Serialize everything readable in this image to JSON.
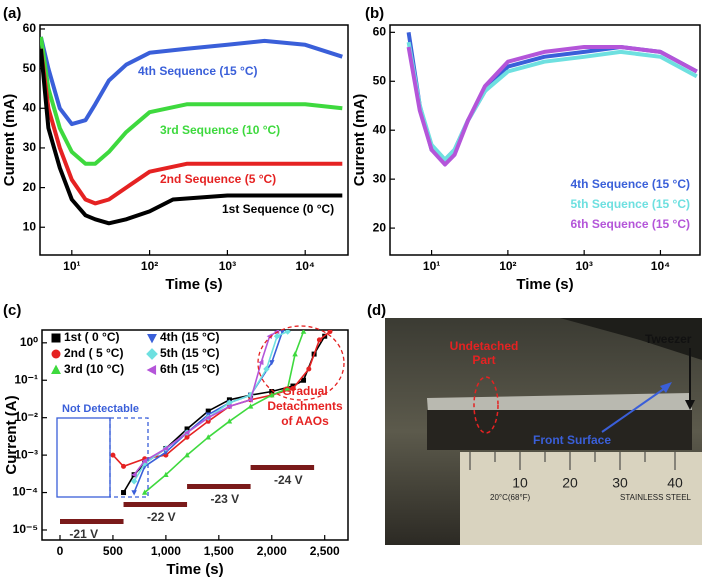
{
  "chart_data": [
    {
      "type": "line",
      "panel_label": "(a)",
      "x_label": "Time (s)",
      "y_label": "Current (mA)",
      "xlog": true,
      "xlim": [
        3.9,
        35500
      ],
      "xticks": [
        {
          "value": 10,
          "label": "10¹"
        },
        {
          "value": 100,
          "label": "10²"
        },
        {
          "value": 1000,
          "label": "10³"
        },
        {
          "value": 10000,
          "label": "10⁴"
        }
      ],
      "ylim": [
        3,
        61
      ],
      "yticks": [
        10,
        20,
        30,
        40,
        50,
        60
      ],
      "legend": "on-curve",
      "series": [
        {
          "name": "4th Sequence (15 °C)",
          "color": "#3a5fd9",
          "x": [
            4,
            5,
            7,
            10,
            15,
            20,
            30,
            50,
            100,
            300,
            1000,
            3000,
            10000,
            30000
          ],
          "values": [
            58,
            50,
            40,
            36,
            37,
            41,
            47,
            51,
            54,
            55,
            56,
            57,
            56,
            53
          ]
        },
        {
          "name": "3rd Sequence (10 °C)",
          "color": "#3ed93e",
          "x": [
            4,
            5,
            7,
            10,
            15,
            20,
            30,
            50,
            100,
            300,
            1000,
            10000,
            30000
          ],
          "values": [
            58,
            45,
            35,
            29,
            26,
            26,
            29,
            34,
            39,
            41,
            41,
            41,
            40
          ]
        },
        {
          "name": "2nd Sequence (5 °C)",
          "color": "#e52222",
          "x": [
            4,
            5,
            7,
            10,
            15,
            20,
            30,
            50,
            100,
            300,
            1000,
            10000,
            30000
          ],
          "values": [
            55,
            40,
            30,
            22,
            17,
            16,
            17,
            20,
            24,
            26,
            26,
            26,
            26
          ]
        },
        {
          "name": "1st Sequence (0 °C)",
          "color": "#000000",
          "x": [
            4,
            5,
            7,
            10,
            15,
            20,
            30,
            50,
            100,
            200,
            1000,
            10000,
            30000
          ],
          "values": [
            55,
            35,
            25,
            17,
            13,
            12,
            11,
            12,
            14,
            17,
            18,
            18,
            18
          ]
        }
      ]
    },
    {
      "type": "line",
      "panel_label": "(b)",
      "x_label": "Time (s)",
      "y_label": "Current (mA)",
      "xlog": true,
      "xlim": [
        2.85,
        33000
      ],
      "xticks": [
        {
          "value": 10,
          "label": "10¹"
        },
        {
          "value": 100,
          "label": "10²"
        },
        {
          "value": 1000,
          "label": "10³"
        },
        {
          "value": 10000,
          "label": "10⁴"
        }
      ],
      "ylim": [
        14.5,
        61.5
      ],
      "yticks": [
        20,
        30,
        40,
        50,
        60
      ],
      "legend": "lower right",
      "series": [
        {
          "name": "4th Sequence (15 °C)",
          "color": "#3a5fd9",
          "x": [
            5,
            7,
            10,
            15,
            20,
            30,
            50,
            100,
            300,
            1000,
            3000,
            10000,
            30000
          ],
          "values": [
            60,
            45,
            36,
            34,
            36,
            42,
            48,
            53,
            55,
            56,
            57,
            56,
            52
          ]
        },
        {
          "name": "5th Sequence (15 °C)",
          "color": "#6ee0e0",
          "x": [
            5,
            7,
            10,
            15,
            20,
            30,
            50,
            100,
            300,
            1000,
            3000,
            10000,
            30000
          ],
          "values": [
            58,
            45,
            37,
            34,
            36,
            42,
            48,
            52,
            54,
            55,
            56,
            55,
            51
          ]
        },
        {
          "name": "6th Sequence (15 °C)",
          "color": "#b455d9",
          "x": [
            5,
            7,
            10,
            15,
            20,
            30,
            50,
            100,
            300,
            1000,
            3000,
            10000,
            30000
          ],
          "values": [
            57,
            44,
            36,
            33,
            35,
            42,
            49,
            54,
            56,
            57,
            57,
            56,
            52
          ]
        }
      ]
    },
    {
      "type": "line",
      "panel_label": "(c)",
      "x_label": "Time (s)",
      "y_label": "Current (A)",
      "xlim": [
        -170,
        2720
      ],
      "xticks": [
        0,
        500,
        {
          "value": 1000,
          "label": "1,000"
        },
        {
          "value": 1500,
          "label": "1,500"
        },
        {
          "value": 2000,
          "label": "2,000"
        },
        {
          "value": 2500,
          "label": "2,500"
        }
      ],
      "ylog": true,
      "ylim": [
        5.4e-06,
        2.2
      ],
      "yticks": [
        {
          "value": 1e-05,
          "label": "10⁻⁵"
        },
        {
          "value": 0.0001,
          "label": "10⁻⁴"
        },
        {
          "value": 0.001,
          "label": "10⁻³"
        },
        {
          "value": 0.01,
          "label": "10⁻²"
        },
        {
          "value": 0.1,
          "label": "10⁻¹"
        },
        {
          "value": 1,
          "label": "10⁰"
        }
      ],
      "legend": "upper left",
      "series": [
        {
          "name": "1st ( 0 °C)",
          "color": "#000000",
          "marker": "square",
          "x": [
            600,
            700,
            800,
            1000,
            1200,
            1400,
            1600,
            1800,
            2000,
            2200,
            2300,
            2400,
            2500
          ],
          "values": [
            0.0001,
            0.0003,
            0.0006,
            0.0015,
            0.005,
            0.015,
            0.03,
            0.04,
            0.05,
            0.07,
            0.1,
            0.5,
            1.5
          ]
        },
        {
          "name": "2nd ( 5 °C)",
          "color": "#e52222",
          "marker": "circle",
          "x": [
            500,
            600,
            800,
            1000,
            1200,
            1400,
            1600,
            1800,
            2000,
            2200,
            2350,
            2450,
            2550
          ],
          "values": [
            0.001,
            0.0005,
            0.0008,
            0.001,
            0.003,
            0.008,
            0.02,
            0.03,
            0.04,
            0.06,
            0.2,
            1.2,
            2
          ]
        },
        {
          "name": "3rd (10 °C)",
          "color": "#3ed93e",
          "marker": "triangle-up",
          "x": [
            800,
            1000,
            1200,
            1400,
            1600,
            1800,
            2000,
            2150,
            2220,
            2300
          ],
          "values": [
            0.0001,
            0.0003,
            0.001,
            0.003,
            0.008,
            0.02,
            0.04,
            0.06,
            0.5,
            2
          ]
        },
        {
          "name": "4th (15 °C)",
          "color": "#3a5fd9",
          "marker": "triangle-down",
          "x": [
            700,
            800,
            1000,
            1200,
            1400,
            1600,
            1800,
            2000,
            2100
          ],
          "values": [
            0.0001,
            0.0005,
            0.0012,
            0.004,
            0.012,
            0.025,
            0.04,
            0.3,
            2
          ]
        },
        {
          "name": "5th (15 °C)",
          "color": "#6ee0e0",
          "marker": "diamond",
          "x": [
            700,
            800,
            1000,
            1200,
            1400,
            1600,
            1800,
            1950,
            2050,
            2150
          ],
          "values": [
            0.0002,
            0.0006,
            0.0015,
            0.004,
            0.01,
            0.025,
            0.04,
            0.2,
            1.5,
            2
          ]
        },
        {
          "name": "6th (15 °C)",
          "color": "#b455d9",
          "marker": "triangle-left",
          "x": [
            700,
            800,
            1000,
            1200,
            1400,
            1600,
            1800,
            1900,
            1980,
            2050
          ],
          "values": [
            0.0003,
            0.0007,
            0.0015,
            0.004,
            0.01,
            0.02,
            0.03,
            0.3,
            1.5,
            2
          ]
        }
      ],
      "voltage_steps": [
        {
          "label": "-21 V",
          "start": 0,
          "end": 600
        },
        {
          "label": "-22 V",
          "start": 600,
          "end": 1200
        },
        {
          "label": "-23 V",
          "start": 1200,
          "end": 1800
        },
        {
          "label": "-24 V",
          "start": 1800,
          "end": 2400
        }
      ],
      "step_color": "#7a1a1a",
      "notes": {
        "undetectable": "Not Detectable",
        "detachment": [
          "Gradual",
          "Detachments",
          "of AAOs"
        ]
      }
    }
  ],
  "photo": {
    "panel_label": "(d)",
    "undetached": [
      "Undetached",
      "Part"
    ],
    "tweezer": "Tweezer",
    "front": "Front Surface",
    "ruler_numbers": [
      "10",
      "20",
      "30",
      "40"
    ],
    "ruler_temp": "20°C(68°F)",
    "ruler_brand": "STAINLESS STEEL"
  }
}
